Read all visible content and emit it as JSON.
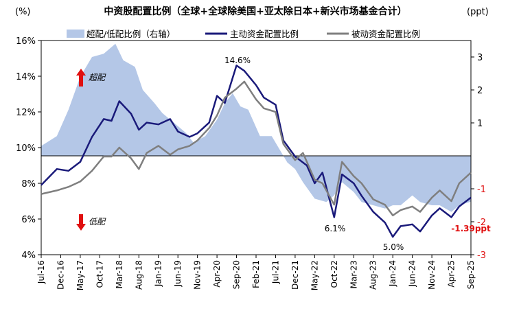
{
  "chart_data": {
    "type": "line",
    "title": "中资股配置比例（全球+全球除美国+亚太除日本+新兴市场基金合计）",
    "left_unit": "(%)",
    "right_unit": "(ppt)",
    "left_axis": {
      "ylim": [
        4,
        16
      ],
      "ticks": [
        "4%",
        "6%",
        "8%",
        "10%",
        "12%",
        "14%",
        "16%"
      ],
      "tick_values": [
        4,
        6,
        8,
        10,
        12,
        14,
        16
      ]
    },
    "right_axis": {
      "ylim": [
        -3,
        3.5
      ],
      "ticks": [
        "-3",
        "-2",
        "-1",
        "1",
        "2",
        "3"
      ],
      "tick_values": [
        -3,
        -2,
        -1,
        1,
        2,
        3
      ]
    },
    "x_tick_labels": [
      "Jul-16",
      "Dec-16",
      "May-17",
      "Oct-17",
      "Mar-18",
      "Aug-18",
      "Jan-19",
      "Jun-19",
      "Nov-19",
      "Apr-20",
      "Sep-20",
      "Feb-21",
      "Jul-21",
      "Dec-21",
      "May-22",
      "Oct-22",
      "Mar-23",
      "Aug-23",
      "Jan-24",
      "Jun-24",
      "Nov-24",
      "Apr-25",
      "Sep-25"
    ],
    "legend": {
      "position": "top",
      "items": [
        {
          "label": "超配/低配比例（右轴）",
          "kind": "area",
          "color": "#b4c7e7"
        },
        {
          "label": "主动资金配置比例",
          "kind": "line",
          "color": "#1a1a7a"
        },
        {
          "label": "被动资金配置比例",
          "kind": "line",
          "color": "#7f7f7f"
        }
      ]
    },
    "annotations": {
      "overweight": "超配",
      "underweight": "低配",
      "peak": "14.6%",
      "low_oct22": "6.1%",
      "low_jan24": "5.0%",
      "latest": "-1.39ppt"
    },
    "series": [
      {
        "name": "超配/低配比例（右轴）",
        "axis": "right",
        "type": "area",
        "color": "#b4c7e7",
        "x": [
          "Jul-16",
          "Nov-16",
          "Feb-17",
          "May-17",
          "Aug-17",
          "Nov-17",
          "Feb-18",
          "Apr-18",
          "Jul-18",
          "Sep-18",
          "Dec-18",
          "Feb-19",
          "May-19",
          "Aug-19",
          "Oct-19",
          "Jan-20",
          "Apr-20",
          "Jun-20",
          "Aug-20",
          "Oct-20",
          "Dec-20",
          "Mar-21",
          "Jun-21",
          "Aug-21",
          "Oct-21",
          "Dec-21",
          "Feb-22",
          "May-22",
          "Aug-22",
          "Oct-22",
          "Dec-22",
          "Mar-23",
          "May-23",
          "Aug-23",
          "Nov-23",
          "Jan-24",
          "Mar-24",
          "Jun-24",
          "Aug-24",
          "Nov-24",
          "Jan-25",
          "Apr-25",
          "Jun-25",
          "Sep-25"
        ],
        "values": [
          0.3,
          0.6,
          1.4,
          2.4,
          3.0,
          3.1,
          3.4,
          2.9,
          2.7,
          2.0,
          1.6,
          1.3,
          1.0,
          0.7,
          0.4,
          0.6,
          1.1,
          1.6,
          1.9,
          1.5,
          1.4,
          0.6,
          0.6,
          0.2,
          -0.2,
          -0.4,
          -0.8,
          -1.3,
          -1.4,
          -1.2,
          -0.8,
          -1.1,
          -1.4,
          -1.5,
          -1.6,
          -1.5,
          -1.5,
          -1.2,
          -1.4,
          -1.5,
          -1.5,
          -1.7,
          -1.5,
          -1.39
        ]
      },
      {
        "name": "主动资金配置比例",
        "axis": "left",
        "type": "line",
        "color": "#1a1a7a",
        "x": [
          "Jul-16",
          "Nov-16",
          "Feb-17",
          "May-17",
          "Aug-17",
          "Nov-17",
          "Jan-18",
          "Mar-18",
          "Jun-18",
          "Aug-18",
          "Oct-18",
          "Jan-19",
          "Apr-19",
          "Jun-19",
          "Sep-19",
          "Nov-19",
          "Feb-20",
          "Apr-20",
          "Jun-20",
          "Sep-20",
          "Nov-20",
          "Feb-21",
          "Apr-21",
          "Jul-21",
          "Sep-21",
          "Dec-21",
          "Mar-22",
          "May-22",
          "Jul-22",
          "Oct-22",
          "Dec-22",
          "Mar-23",
          "May-23",
          "Aug-23",
          "Nov-23",
          "Jan-24",
          "Mar-24",
          "Jun-24",
          "Aug-24",
          "Nov-24",
          "Jan-25",
          "Apr-25",
          "Jun-25",
          "Sep-25"
        ],
        "values": [
          7.9,
          8.8,
          8.7,
          9.2,
          10.6,
          11.6,
          11.5,
          12.6,
          11.9,
          11.0,
          11.4,
          11.3,
          11.6,
          10.9,
          10.6,
          10.8,
          11.4,
          12.9,
          12.5,
          14.6,
          14.3,
          13.5,
          12.8,
          12.4,
          10.4,
          9.5,
          9.0,
          8.0,
          8.6,
          6.1,
          8.5,
          8.0,
          7.3,
          6.4,
          5.8,
          5.0,
          5.6,
          5.7,
          5.3,
          6.2,
          6.6,
          6.1,
          6.7,
          7.2
        ]
      },
      {
        "name": "被动资金配置比例",
        "axis": "left",
        "type": "line",
        "color": "#7f7f7f",
        "x": [
          "Jul-16",
          "Nov-16",
          "Feb-17",
          "May-17",
          "Aug-17",
          "Nov-17",
          "Jan-18",
          "Mar-18",
          "Jun-18",
          "Aug-18",
          "Oct-18",
          "Jan-19",
          "Apr-19",
          "Jun-19",
          "Sep-19",
          "Nov-19",
          "Feb-20",
          "Apr-20",
          "Jun-20",
          "Sep-20",
          "Nov-20",
          "Feb-21",
          "Apr-21",
          "Jul-21",
          "Sep-21",
          "Dec-21",
          "Feb-22",
          "May-22",
          "Jul-22",
          "Oct-22",
          "Dec-22",
          "Mar-23",
          "May-23",
          "Aug-23",
          "Nov-23",
          "Jan-24",
          "Mar-24",
          "Jun-24",
          "Aug-24",
          "Nov-24",
          "Jan-25",
          "Apr-25",
          "Jun-25",
          "Sep-25"
        ],
        "values": [
          7.4,
          7.6,
          7.8,
          8.1,
          8.7,
          9.5,
          9.5,
          10.0,
          9.4,
          8.8,
          9.7,
          10.1,
          9.6,
          9.9,
          10.1,
          10.4,
          11.1,
          11.8,
          12.8,
          13.3,
          13.7,
          12.7,
          12.2,
          12.0,
          10.2,
          9.3,
          9.7,
          8.2,
          8.0,
          6.8,
          9.2,
          8.4,
          8.0,
          7.1,
          6.8,
          6.2,
          6.5,
          6.7,
          6.4,
          7.2,
          7.6,
          7.0,
          8.0,
          8.6
        ]
      }
    ]
  }
}
